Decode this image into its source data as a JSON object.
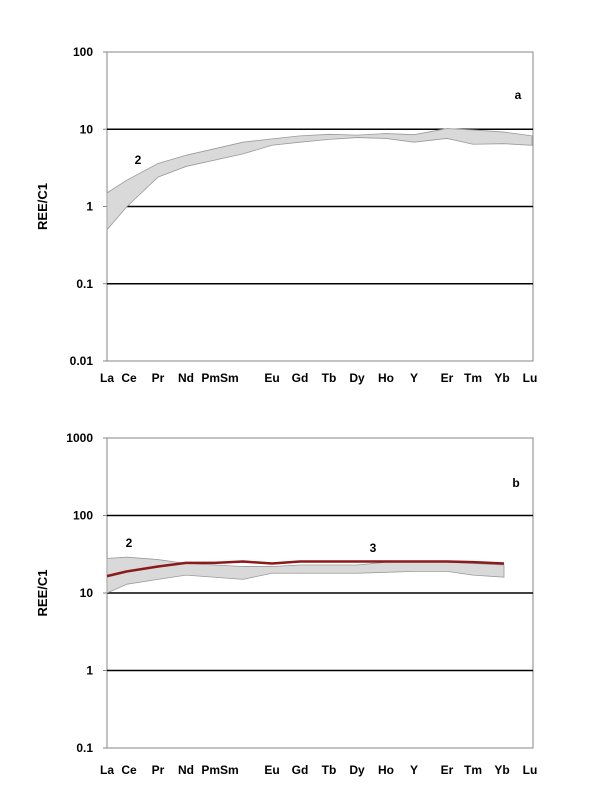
{
  "chart_data": [
    {
      "type": "area",
      "panel_label": "a",
      "ylabel": "REE/C1",
      "yscale": "log",
      "ylim": [
        0.01,
        100
      ],
      "yticks": [
        "0.01",
        "0.1",
        "1",
        "10",
        "100"
      ],
      "grid": "horizontal major lines",
      "categories": [
        "La",
        "Ce",
        "Pr",
        "Nd",
        "Pm",
        "Sm",
        "Eu",
        "Gd",
        "Tb",
        "Dy",
        "Ho",
        "Y",
        "Er",
        "Tm",
        "Yb",
        "Lu"
      ],
      "tick_labels": [
        "La",
        "Ce",
        "Pr",
        "Nd",
        "PmSm",
        "Eu",
        "Gd",
        "Tb",
        "Dy",
        "Ho",
        "Y",
        "Er",
        "Tm",
        "Yb",
        "Lu"
      ],
      "series": [
        {
          "name": "2",
          "kind": "range-band",
          "color": "#d9d9d9",
          "x": [
            "La",
            "Ce",
            "Pr",
            "Nd",
            "Sm",
            "Eu",
            "Gd",
            "Tb",
            "Dy",
            "Ho",
            "Y",
            "Er",
            "Tm",
            "Yb",
            "Lu"
          ],
          "upper": [
            1.5,
            2.2,
            3.6,
            4.6,
            6.8,
            7.5,
            8.2,
            8.6,
            8.4,
            8.8,
            8.5,
            10.2,
            9.8,
            9.2,
            8.2
          ],
          "lower": [
            0.5,
            1.0,
            2.4,
            3.3,
            4.8,
            6.2,
            6.8,
            7.4,
            7.8,
            7.6,
            6.8,
            7.6,
            6.4,
            6.5,
            6.2
          ]
        }
      ],
      "annotations": [
        "2"
      ]
    },
    {
      "type": "area",
      "panel_label": "b",
      "ylabel": "REE/C1",
      "yscale": "log",
      "ylim": [
        0.1,
        1000
      ],
      "yticks": [
        "0.1",
        "1",
        "10",
        "100",
        "1000"
      ],
      "grid": "horizontal major lines",
      "categories": [
        "La",
        "Ce",
        "Pr",
        "Nd",
        "Pm",
        "Sm",
        "Eu",
        "Gd",
        "Tb",
        "Dy",
        "Ho",
        "Y",
        "Er",
        "Tm",
        "Yb",
        "Lu"
      ],
      "tick_labels": [
        "La",
        "Ce",
        "Pr",
        "Nd",
        "PmSm",
        "Eu",
        "Gd",
        "Tb",
        "Dy",
        "Ho",
        "Y",
        "Er",
        "Tm",
        "Yb",
        "Lu"
      ],
      "series": [
        {
          "name": "2",
          "kind": "range-band",
          "color": "#d9d9d9",
          "x": [
            "La",
            "Ce",
            "Pr",
            "Nd",
            "Sm",
            "Eu",
            "Gd",
            "Tb",
            "Dy",
            "Ho",
            "Y",
            "Er",
            "Tm",
            "Yb"
          ],
          "upper": [
            28,
            29,
            27,
            24,
            22,
            22,
            23,
            23,
            23,
            25,
            25,
            25,
            24,
            23
          ],
          "lower": [
            10,
            13,
            15,
            17,
            15,
            18,
            18,
            18,
            18,
            18.5,
            19,
            19,
            17,
            16
          ]
        },
        {
          "name": "3",
          "kind": "line",
          "color": "#8b1a1a",
          "x": [
            "La",
            "Ce",
            "Pr",
            "Nd",
            "Pm",
            "Sm",
            "Eu",
            "Gd",
            "Tb",
            "Dy",
            "Ho",
            "Y",
            "Er",
            "Tm",
            "Yb"
          ],
          "values": [
            16.5,
            19,
            22,
            24.5,
            24.5,
            25.5,
            24,
            25.5,
            25.5,
            25.5,
            25.5,
            25.5,
            25.5,
            25,
            24
          ]
        }
      ],
      "annotations": [
        "2",
        "3"
      ]
    }
  ]
}
